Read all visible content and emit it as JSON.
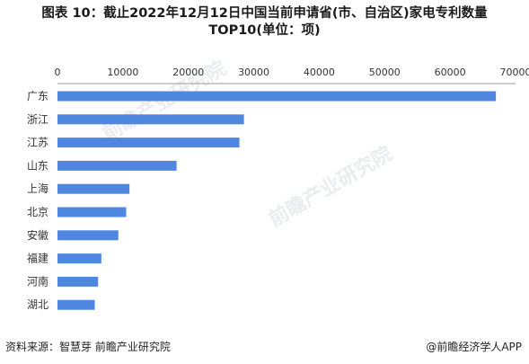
{
  "title_line1": "图表 10：截止2022年12月12日中国当前申请省(市、自治区)家电专利数量",
  "title_line2": "TOP10(单位：项)",
  "source": "资料来源：智慧芽 前瞻产业研究院",
  "credit": "@前瞻经济学人APP",
  "watermark": "前瞻产业研究院",
  "colors": {
    "bar": "#4e86e0",
    "axis": "#999999",
    "text": "#333333"
  },
  "chart_data": {
    "type": "bar",
    "orientation": "horizontal",
    "categories": [
      "广东",
      "浙江",
      "江苏",
      "山东",
      "上海",
      "北京",
      "安徽",
      "福建",
      "河南",
      "湖北"
    ],
    "values": [
      67000,
      28500,
      27800,
      18200,
      11000,
      10500,
      9300,
      6700,
      6200,
      5700
    ],
    "xlim": [
      0,
      70000
    ],
    "xticks": [
      "0",
      "10000",
      "20000",
      "30000",
      "40000",
      "50000",
      "60000",
      "70000"
    ],
    "xaxis_position": "top",
    "grid": false
  }
}
